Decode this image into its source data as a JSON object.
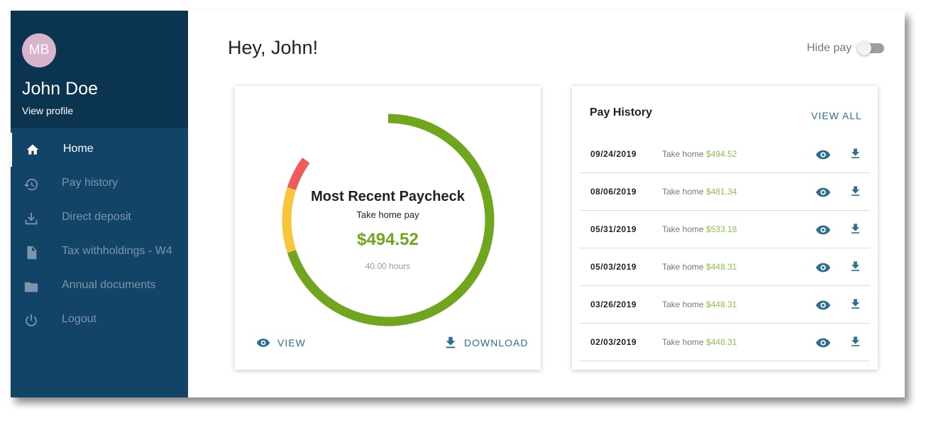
{
  "sidebar": {
    "avatar": "MB",
    "name": "John Doe",
    "profile_link": "View profile",
    "nav": [
      "Home",
      "Pay history",
      "Direct deposit",
      "Tax withholdings - W4",
      "Annual documents",
      "Logout"
    ]
  },
  "header": {
    "greeting": "Hey,",
    "name": "John!",
    "toggle_label": "Hide pay"
  },
  "paycheck": {
    "title": "Most Recent Paycheck",
    "subtitle": "Take home pay",
    "amount": "$494.52",
    "hours": "40.00 hours",
    "view": "VIEW",
    "download": "DOWNLOAD"
  },
  "history": {
    "title": "Pay History",
    "view_all": "VIEW ALL",
    "rows": [
      {
        "date": "09/24/2019",
        "label": "Take home",
        "amount": "$494.52"
      },
      {
        "date": "08/06/2019",
        "label": "Take home",
        "amount": "$481.34"
      },
      {
        "date": "05/31/2019",
        "label": "Take home",
        "amount": "$533.18"
      },
      {
        "date": "05/03/2019",
        "label": "Take home",
        "amount": "$448.31"
      },
      {
        "date": "03/26/2019",
        "label": "Take home",
        "amount": "$448.31"
      },
      {
        "date": "02/03/2019",
        "label": "Take home",
        "amount": "$448.31"
      }
    ]
  }
}
